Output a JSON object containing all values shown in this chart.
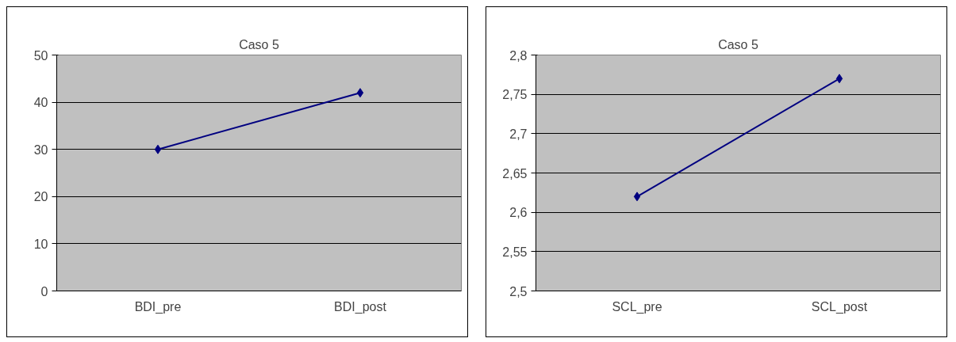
{
  "chart_data": [
    {
      "type": "line",
      "title": "Caso 5",
      "categories": [
        "BDI_pre",
        "BDI_post"
      ],
      "series": [
        {
          "color": "#000080",
          "values": [
            30,
            42
          ]
        }
      ],
      "ylim": [
        0,
        50
      ],
      "yticks": [
        0,
        10,
        20,
        30,
        40,
        50
      ],
      "grid": "y",
      "marker": "diamond"
    },
    {
      "type": "line",
      "title": "Caso 5",
      "categories": [
        "SCL_pre",
        "SCL_post"
      ],
      "series": [
        {
          "color": "#000080",
          "values": [
            2.62,
            2.77
          ]
        }
      ],
      "ylim": [
        2.5,
        2.8
      ],
      "yticks": [
        {
          "value": 2.5,
          "label": "2,5"
        },
        {
          "value": 2.55,
          "label": "2,55"
        },
        {
          "value": 2.6,
          "label": "2,6"
        },
        {
          "value": 2.65,
          "label": "2,65"
        },
        {
          "value": 2.7,
          "label": "2,7"
        },
        {
          "value": 2.75,
          "label": "2,75"
        },
        {
          "value": 2.8,
          "label": "2,8"
        }
      ],
      "grid": "y",
      "marker": "diamond"
    }
  ]
}
